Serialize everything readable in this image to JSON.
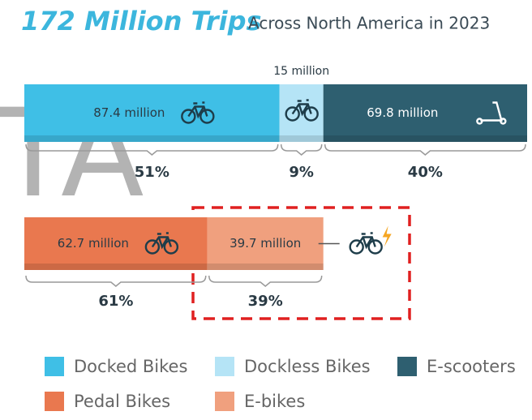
{
  "title": "172 Million Trips",
  "subtitle": "Across North America in 2023",
  "watermark": "TA",
  "rows": [
    {
      "series": [
        {
          "name": "Docked Bikes",
          "color": "#3fbfe6"
        },
        {
          "name": "Dockless Bikes",
          "color": "#b5e4f6"
        },
        {
          "name": "E-scooters",
          "color": "#2e5f70"
        }
      ],
      "values": [
        87.4,
        15,
        69.8
      ],
      "value_labels": [
        "87.4 million",
        "15 million",
        "69.8 million"
      ],
      "shares": [
        51,
        9,
        40
      ],
      "share_labels": [
        "51%",
        "9%",
        "40%"
      ]
    },
    {
      "series": [
        {
          "name": "Pedal Bikes",
          "color": "#e9784f"
        },
        {
          "name": "E-bikes",
          "color": "#f0a07e"
        }
      ],
      "values": [
        62.7,
        39.7
      ],
      "value_labels": [
        "62.7 million",
        "39.7 million"
      ],
      "shares": [
        61,
        39
      ],
      "share_labels": [
        "61%",
        "39%"
      ]
    }
  ]
}
